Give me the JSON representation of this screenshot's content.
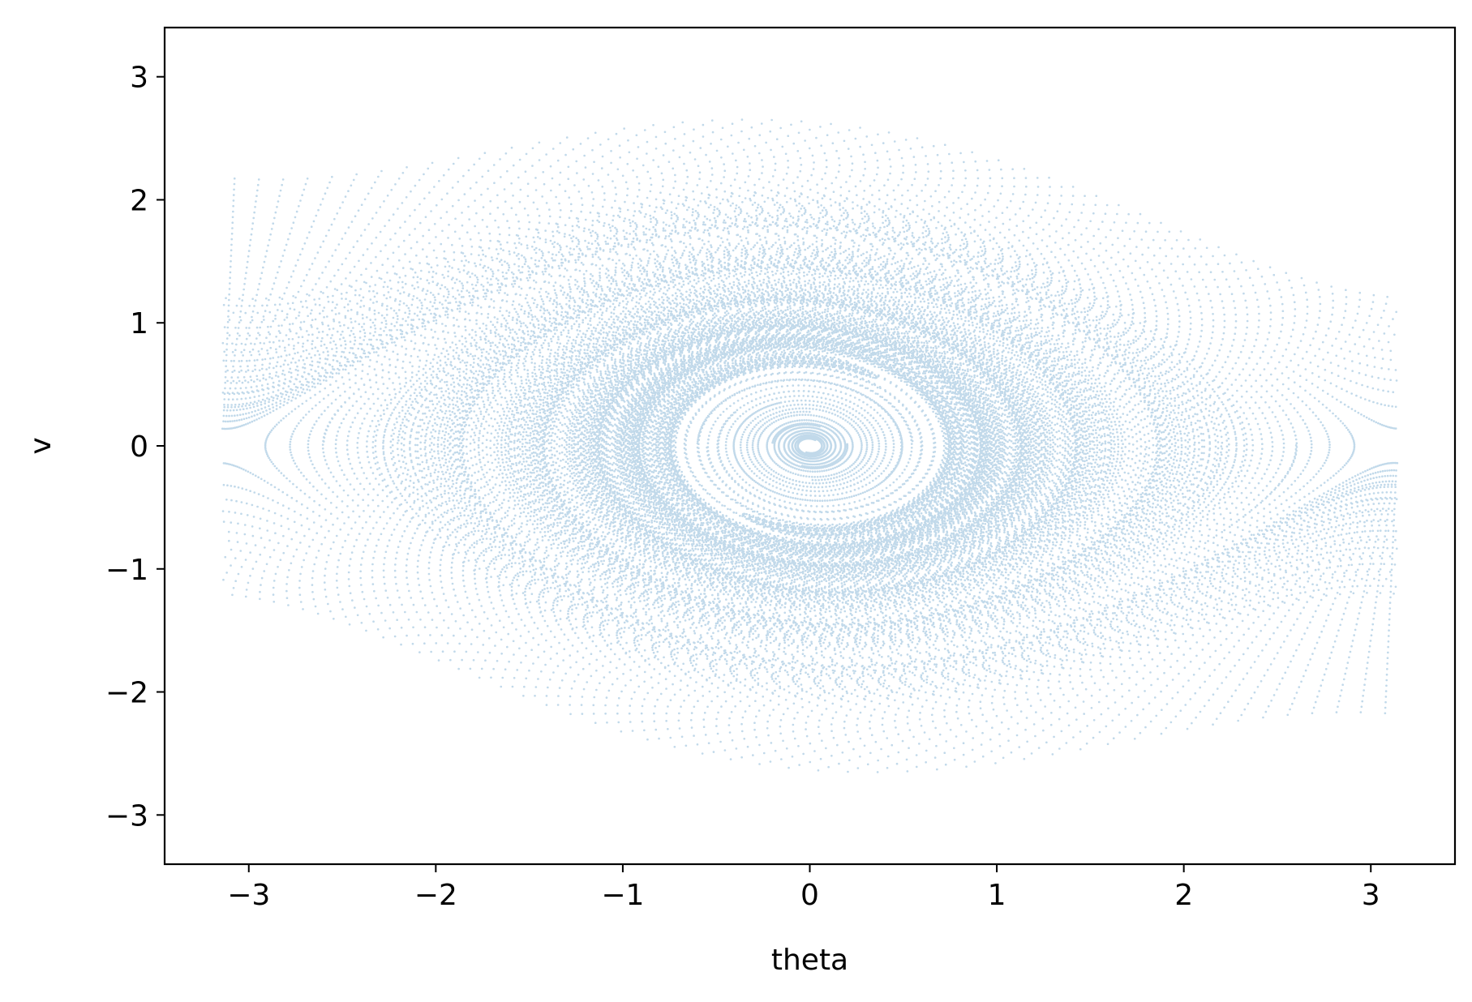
{
  "chart_data": {
    "type": "scatter",
    "title": "",
    "xlabel": "theta",
    "ylabel": "v",
    "xlim": [
      -3.45,
      3.45
    ],
    "ylim": [
      -3.4,
      3.4
    ],
    "xticks": [
      {
        "value": -3,
        "label": "−3"
      },
      {
        "value": -2,
        "label": "−2"
      },
      {
        "value": -1,
        "label": "−1"
      },
      {
        "value": 0,
        "label": "0"
      },
      {
        "value": 1,
        "label": "1"
      },
      {
        "value": 2,
        "label": "2"
      },
      {
        "value": 3,
        "label": "3"
      }
    ],
    "yticks": [
      {
        "value": -3,
        "label": "−3"
      },
      {
        "value": -2,
        "label": "−2"
      },
      {
        "value": -1,
        "label": "−1"
      },
      {
        "value": 0,
        "label": "0"
      },
      {
        "value": 1,
        "label": "1"
      },
      {
        "value": 2,
        "label": "2"
      },
      {
        "value": 3,
        "label": "3"
      }
    ],
    "grid": false,
    "legend": "none",
    "series": [
      {
        "description": "damped pendulum phase-space trajectories (theta wrapped to [-pi, pi])",
        "color": "#1f77b4",
        "theta_range": [
          -3.1416,
          3.1416
        ],
        "v_range": [
          -3.07,
          3.07
        ],
        "marker": "small hollow circle"
      }
    ]
  }
}
